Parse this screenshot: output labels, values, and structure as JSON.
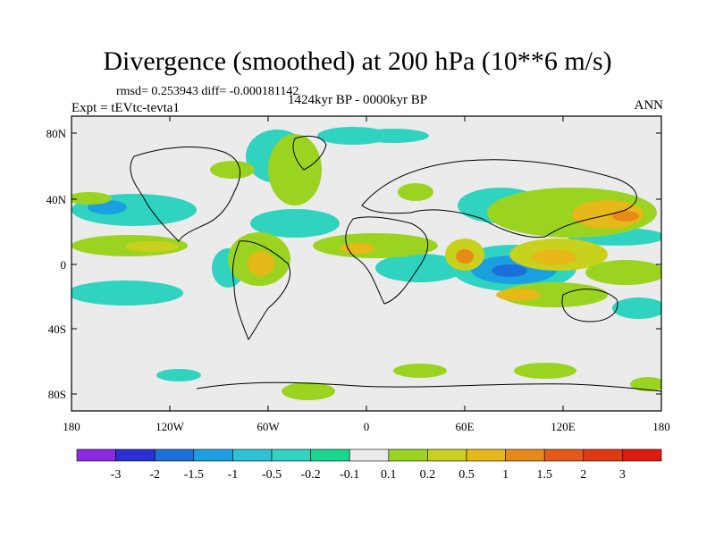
{
  "title": "Divergence (smoothed) at 200 hPa (10**6 m/s)",
  "stats": "rmsd= 0.253943 diff= -0.000181142",
  "expt": "Expt = tEVtc-tevta1",
  "period": "1424kyr BP - 0000kyr BP",
  "season": "ANN",
  "axes": {
    "lon_ticks": [
      "180",
      "120W",
      "60W",
      "0",
      "60E",
      "120E",
      "180"
    ],
    "lat_ticks": [
      "80N",
      "40N",
      "0",
      "40S",
      "80S"
    ]
  },
  "colorbar": {
    "labels": [
      "-3",
      "-2",
      "-1.5",
      "-1",
      "-0.5",
      "-0.2",
      "-0.1",
      "0.1",
      "0.2",
      "0.5",
      "1",
      "1.5",
      "2",
      "3"
    ],
    "colors": [
      "#8a2be2",
      "#2d2fd6",
      "#1a6fd8",
      "#1aa0e0",
      "#2cc3d4",
      "#2fd3c0",
      "#18d890",
      "#ebebeb",
      "#9ad420",
      "#c8d21c",
      "#e6b818",
      "#e88a18",
      "#e65a18",
      "#e03a14",
      "#e01a0c"
    ]
  }
}
